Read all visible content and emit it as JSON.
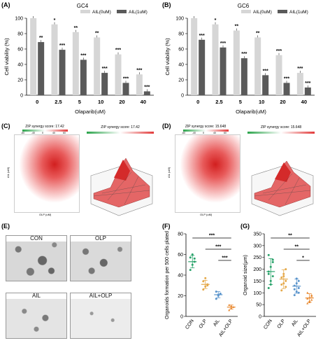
{
  "panels": {
    "A": "(A)",
    "B": "(B)",
    "C": "(C)",
    "D": "(D)",
    "E": "(E)",
    "F": "(F)",
    "G": "(G)"
  },
  "colors": {
    "light_bar": "#d6d6d6",
    "dark_bar": "#5a5a5a",
    "heat_red": "#e23b3b",
    "con": "#2aa36b",
    "olp": "#e5a94a",
    "ail": "#5b95cc",
    "ail_olp": "#e8872c"
  },
  "chart_data": [
    {
      "id": "A",
      "type": "bar",
      "title": "GC4",
      "xlabel": "Olaparib(uM)",
      "ylabel": "Cell viability (%)",
      "ylim": [
        0,
        100
      ],
      "yticks": [
        "0",
        "20",
        "40",
        "60",
        "80",
        "100"
      ],
      "categories": [
        "0",
        "2.5",
        "5",
        "10",
        "20",
        "40"
      ],
      "series": [
        {
          "name": "AIL(0uM)",
          "values": [
            100,
            92,
            82,
            75,
            53,
            27
          ]
        },
        {
          "name": "AIL(1uM)",
          "values": [
            69,
            59,
            46,
            29,
            16,
            5
          ]
        }
      ],
      "significance": {
        "AIL(0uM)": [
          "",
          "*",
          "**",
          "**",
          "***",
          "***"
        ],
        "AIL(1uM)": [
          "**",
          "***",
          "***",
          "***",
          "***",
          "***"
        ]
      },
      "legend": "top-right"
    },
    {
      "id": "B",
      "type": "bar",
      "title": "GC6",
      "xlabel": "Olaparib(uM)",
      "ylabel": "Cell viability (%)",
      "ylim": [
        0,
        100
      ],
      "yticks": [
        "0",
        "20",
        "40",
        "60",
        "80",
        "100"
      ],
      "categories": [
        "0",
        "2.5",
        "5",
        "10",
        "20",
        "40"
      ],
      "series": [
        {
          "name": "AIL(0uM)",
          "values": [
            100,
            92,
            84,
            75,
            52,
            29
          ]
        },
        {
          "name": "AIL(1uM)",
          "values": [
            72,
            62,
            48,
            26,
            16,
            10
          ]
        }
      ],
      "significance": {
        "AIL(0uM)": [
          "",
          "*",
          "**",
          "**",
          "***",
          "***"
        ],
        "AIL(1uM)": [
          "***",
          "***",
          "***",
          "***",
          "***",
          "***"
        ]
      },
      "legend": "top-right"
    },
    {
      "id": "C",
      "type": "heatmap",
      "title": "ZIP synergy score: 17.42",
      "xlabel": "OLP (uM)",
      "ylabel": "AIL (uM)",
      "scale_ticks": [
        "-60",
        "-40",
        "0",
        "40",
        "60"
      ],
      "surface_title": "ZIP synergy score: 17.42"
    },
    {
      "id": "D",
      "type": "heatmap",
      "title": "ZIP synergy score: 15.648",
      "xlabel": "OLP (uM)",
      "ylabel": "AIL (uM)",
      "scale_ticks": [
        "-60",
        "-40",
        "0",
        "40",
        "60"
      ],
      "surface_title": "ZIP synergy score: 15.648"
    },
    {
      "id": "F",
      "type": "scatter",
      "ylabel": "Organoids formation per 500 cells plated",
      "ylim": [
        0,
        80
      ],
      "yticks": [
        "0",
        "20",
        "40",
        "60",
        "80"
      ],
      "categories": [
        "CON",
        "OLP",
        "AIL",
        "AIL+OLP"
      ],
      "means": [
        53,
        31,
        21,
        9
      ],
      "sds": [
        6,
        4,
        3,
        2
      ],
      "points": [
        [
          45,
          50,
          53,
          57,
          60,
          56
        ],
        [
          26,
          29,
          31,
          34,
          37,
          30
        ],
        [
          17,
          20,
          22,
          24,
          21
        ],
        [
          6,
          8,
          9,
          11,
          10
        ]
      ],
      "brackets": [
        {
          "from": 0,
          "to": 3,
          "label": "***"
        },
        {
          "from": 1,
          "to": 3,
          "label": "***"
        },
        {
          "from": 2,
          "to": 3,
          "label": "***"
        }
      ]
    },
    {
      "id": "G",
      "type": "scatter",
      "ylabel": "Organoid size(μm)",
      "ylim": [
        0,
        350
      ],
      "yticks": [
        "0",
        "50",
        "100",
        "150",
        "200",
        "250",
        "300",
        "350"
      ],
      "categories": [
        "CON",
        "OLP",
        "AIL",
        "AIL+OLP"
      ],
      "means": [
        190,
        158,
        128,
        78
      ],
      "sds": [
        55,
        40,
        30,
        18
      ],
      "points": [
        [
          120,
          150,
          170,
          190,
          210,
          240,
          260,
          135,
          230,
          180
        ],
        [
          110,
          140,
          150,
          165,
          180,
          200,
          135,
          170,
          125
        ],
        [
          90,
          105,
          120,
          130,
          140,
          150,
          115,
          160,
          100
        ],
        [
          55,
          65,
          70,
          75,
          80,
          90,
          100,
          60,
          85
        ]
      ],
      "brackets": [
        {
          "from": 0,
          "to": 3,
          "label": "**"
        },
        {
          "from": 1,
          "to": 3,
          "label": "**"
        },
        {
          "from": 2,
          "to": 3,
          "label": "*"
        }
      ]
    }
  ],
  "micrographs": [
    "CON",
    "OLP",
    "AIL",
    "AIL+OLP"
  ]
}
